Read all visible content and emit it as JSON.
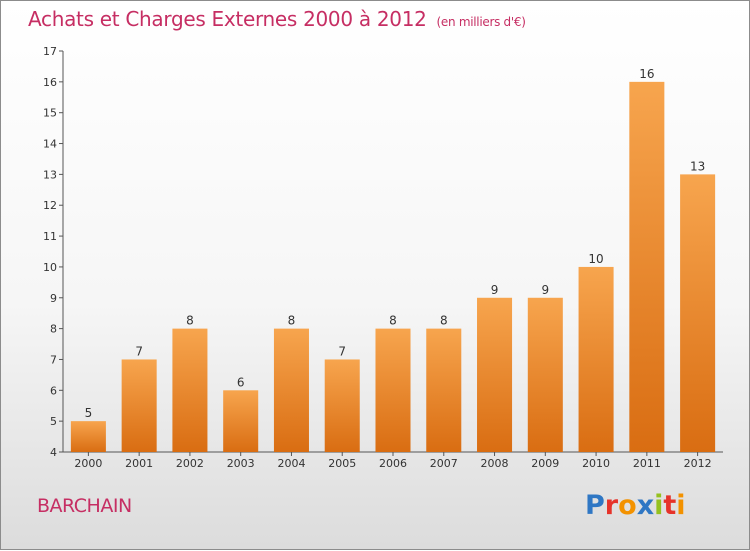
{
  "chart_data": {
    "type": "bar",
    "title": "Achats et Charges Externes 2000 à 2012",
    "subtitle": "(en milliers d'€)",
    "categories": [
      "2000",
      "2001",
      "2002",
      "2003",
      "2004",
      "2005",
      "2006",
      "2007",
      "2008",
      "2009",
      "2010",
      "2011",
      "2012"
    ],
    "values": [
      5,
      7,
      8,
      6,
      8,
      7,
      8,
      8,
      9,
      9,
      10,
      16,
      13
    ],
    "ylim": [
      4,
      17
    ],
    "yticks": [
      "4",
      "5",
      "6",
      "7",
      "8",
      "9",
      "10",
      "11",
      "12",
      "13",
      "14",
      "15",
      "16",
      "17"
    ],
    "grid": false,
    "bar_color_top": "#f7a54e",
    "bar_color_bottom": "#d96d12"
  },
  "commune": "BARCHAIN",
  "logo": {
    "text": "Proxiti",
    "parts": [
      "P",
      "r",
      "o",
      "x",
      "i",
      "t",
      "i"
    ]
  },
  "colors": {
    "accent": "#c62e63"
  }
}
